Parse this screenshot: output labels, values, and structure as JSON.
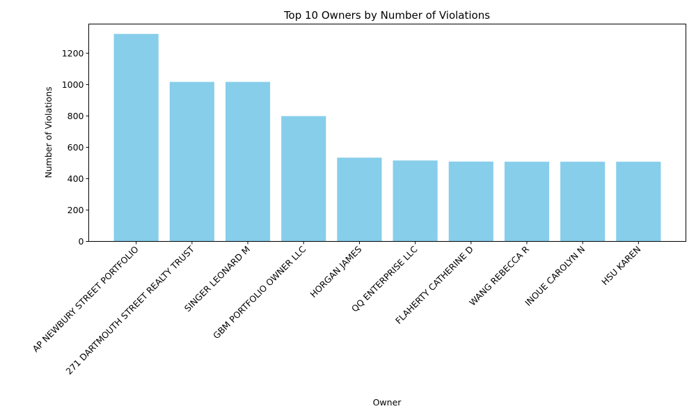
{
  "chart_data": {
    "type": "bar",
    "title": "Top 10 Owners by Number of Violations",
    "xlabel": "Owner",
    "ylabel": "Number of Violations",
    "categories": [
      "AP NEWBURY STREET  PORTFOLIO",
      "271 DARTMOUTH STREET REALTY TRUST",
      "SINGER LEONARD M",
      "GBM PORTFOLIO OWNER LLC",
      "HORGAN JAMES",
      "QQ ENTERPRISE LLC",
      "FLAHERTY CATHERINE D",
      "WANG REBECCA R",
      "INOUE CAROLYN N",
      "HSU KAREN"
    ],
    "values": [
      1323,
      1017,
      1017,
      799,
      534,
      516,
      509,
      508,
      508,
      508
    ],
    "ylim": [
      0,
      1386
    ],
    "yticks": [
      0,
      200,
      400,
      600,
      800,
      1000,
      1200
    ],
    "grid": false,
    "bar_color": "#87ceeb"
  }
}
